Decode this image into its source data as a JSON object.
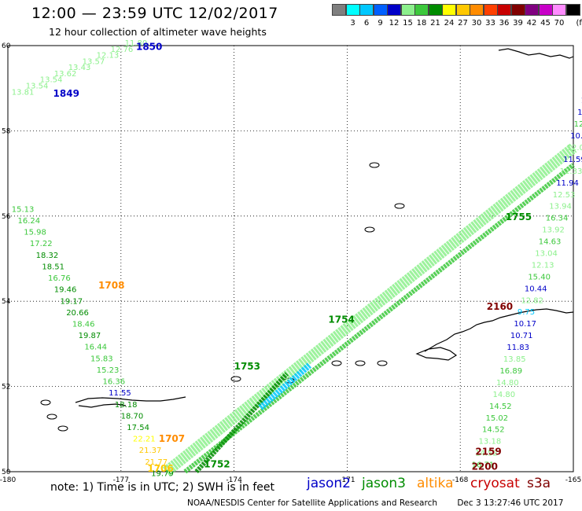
{
  "header": {
    "title": "12:00 — 23:59 UTC 12/02/2017",
    "subtitle": "12 hour collection of altimeter wave heights"
  },
  "legend": {
    "unit": "(ft)",
    "bins": [
      {
        "label": "",
        "color": "#7f7f7f"
      },
      {
        "label": "3",
        "color": "#00ffff"
      },
      {
        "label": "6",
        "color": "#00c8ff"
      },
      {
        "label": "9",
        "color": "#0060ff"
      },
      {
        "label": "12",
        "color": "#0000c8"
      },
      {
        "label": "15",
        "color": "#8cf08c"
      },
      {
        "label": "18",
        "color": "#3cc83c"
      },
      {
        "label": "21",
        "color": "#008c00"
      },
      {
        "label": "24",
        "color": "#ffff00"
      },
      {
        "label": "27",
        "color": "#ffc800"
      },
      {
        "label": "30",
        "color": "#ff8c00"
      },
      {
        "label": "33",
        "color": "#ff4000"
      },
      {
        "label": "36",
        "color": "#c80000"
      },
      {
        "label": "39",
        "color": "#800000"
      },
      {
        "label": "42",
        "color": "#800080"
      },
      {
        "label": "45",
        "color": "#c800c8"
      },
      {
        "label": "70",
        "color": "#ff8cff"
      },
      {
        "label": "",
        "color": "#000000"
      }
    ]
  },
  "map": {
    "lon_range": [
      -180,
      -165
    ],
    "lat_range": [
      50,
      60
    ],
    "x_ticks": [
      "-180",
      "-177",
      "-174",
      "-171",
      "-168",
      "-165"
    ],
    "y_ticks": [
      "50",
      "52",
      "54",
      "56",
      "58",
      "60"
    ],
    "grid": true
  },
  "passes": [
    {
      "time": "1850",
      "color": "#0000c8",
      "lon": -176.6,
      "lat": 59.9
    },
    {
      "time": "1849",
      "color": "#0000c8",
      "lon": -178.8,
      "lat": 58.8
    },
    {
      "time": "1708",
      "color": "#ff8c00",
      "lon": -177.6,
      "lat": 54.3
    },
    {
      "time": "1707",
      "color": "#ff8c00",
      "lon": -176.0,
      "lat": 50.7
    },
    {
      "time": "1706",
      "color": "#ffc800",
      "lon": -176.3,
      "lat": 50.0
    },
    {
      "time": "1753",
      "color": "#008c00",
      "lon": -174.0,
      "lat": 52.4
    },
    {
      "time": "1752",
      "color": "#008c00",
      "lon": -174.8,
      "lat": 50.1
    },
    {
      "time": "1754",
      "color": "#008c00",
      "lon": -171.5,
      "lat": 53.5
    },
    {
      "time": "1755",
      "color": "#008c00",
      "lon": -166.8,
      "lat": 55.9
    },
    {
      "time": "2159",
      "color": "#800000",
      "lon": -167.6,
      "lat": 50.4
    },
    {
      "time": "2200",
      "color": "#800000",
      "lon": -167.7,
      "lat": 50.05
    },
    {
      "time": "2160",
      "color": "#800000",
      "lon": -167.3,
      "lat": 53.8
    },
    {
      "time": "21",
      "color": "#800000",
      "lon": -164.7,
      "lat": 57.4
    }
  ],
  "tracks": [
    {
      "name": "bering-ne",
      "color": "#8cf08c",
      "labels": [
        "13.81",
        "13.54",
        "13.54",
        "13.62",
        "13.43",
        "13.57",
        "12.13",
        "12.76",
        "11.80"
      ],
      "start": [
        -179.9,
        58.85
      ],
      "end": [
        -176.9,
        60
      ]
    },
    {
      "name": "west-coast",
      "color": "#3cc83c",
      "labels": [
        "15.13",
        "16.24",
        "15.98",
        "17.22",
        "18.32",
        "18.51",
        "16.76",
        "19.46",
        "19.17",
        "20.66",
        "18.46",
        "19.87",
        "16.44",
        "15.83",
        "15.23",
        "16.36",
        "11.55",
        "18.18",
        "18.70",
        "17.54",
        "22.21",
        "21.37",
        "21.77",
        "19.79"
      ],
      "start": [
        -179.9,
        56.1
      ],
      "end": [
        -176.2,
        49.9
      ],
      "colors": [
        "#3cc83c",
        "#3cc83c",
        "#3cc83c",
        "#3cc83c",
        "#008c00",
        "#008c00",
        "#3cc83c",
        "#008c00",
        "#008c00",
        "#008c00",
        "#3cc83c",
        "#008c00",
        "#3cc83c",
        "#3cc83c",
        "#3cc83c",
        "#3cc83c",
        "#0000c8",
        "#008c00",
        "#008c00",
        "#008c00",
        "#ffff00",
        "#ffc800",
        "#ffc800",
        "#008c00"
      ]
    },
    {
      "name": "east-column",
      "color": "#3cc83c",
      "labels": [
        "10.",
        "11.",
        "12.3",
        "10.86",
        "12.02",
        "11.59",
        "12.33",
        "11.94",
        "12.53",
        "13.94",
        "16.34",
        "13.92",
        "14.63",
        "13.04",
        "12.13",
        "15.40",
        "10.44",
        "12.82",
        "9.75",
        "10.17",
        "10.71",
        "11.83",
        "13.85",
        "16.89",
        "14.80",
        "14.80",
        "14.52",
        "15.02",
        "14.52",
        "13.18",
        "14.52",
        "16.71"
      ],
      "start": [
        -164.8,
        58.65
      ],
      "end": [
        -167.7,
        50.1
      ],
      "colors": [
        "#0000c8",
        "#0000c8",
        "#3cc83c",
        "#0000c8",
        "#8cf08c",
        "#0000c8",
        "#8cf08c",
        "#0000c8",
        "#8cf08c",
        "#8cf08c",
        "#3cc83c",
        "#8cf08c",
        "#3cc83c",
        "#8cf08c",
        "#8cf08c",
        "#3cc83c",
        "#0000c8",
        "#8cf08c",
        "#00c8ff",
        "#0000c8",
        "#0000c8",
        "#0000c8",
        "#8cf08c",
        "#3cc83c",
        "#8cf08c",
        "#8cf08c",
        "#3cc83c",
        "#3cc83c",
        "#3cc83c",
        "#8cf08c",
        "#8cf08c",
        "#3cc83c"
      ]
    }
  ],
  "footer": {
    "note": "note: 1) Time is in UTC; 2) SWH is in feet",
    "satellites": [
      {
        "name": "jason2",
        "color": "#0000c8"
      },
      {
        "name": "jason3",
        "color": "#008c00"
      },
      {
        "name": "altika",
        "color": "#ff8c00"
      },
      {
        "name": "cryosat",
        "color": "#c80000"
      },
      {
        "name": "s3a",
        "color": "#800000"
      }
    ],
    "credit": "NOAA/NESDIS Center for Satellite Applications and Research",
    "timestamp": "Dec  3 13:27:46 UTC 2017"
  }
}
